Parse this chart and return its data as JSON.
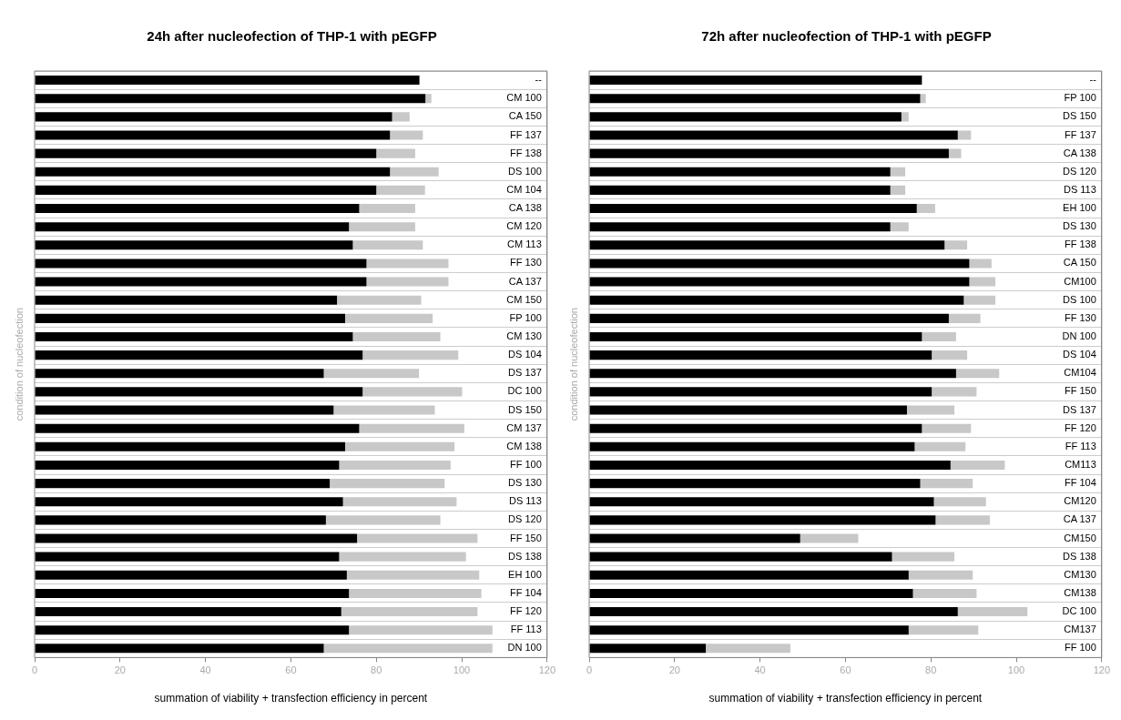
{
  "chart_data": [
    {
      "type": "bar",
      "orientation": "horizontal",
      "stacked": true,
      "title": "24h after nucleofection of THP-1 with pEGFP",
      "xlabel": "summation of viability + transfection efficiency in percent",
      "ylabel": "condition of nucleofection",
      "xlim": [
        0,
        120
      ],
      "xticks": [
        0,
        20,
        40,
        60,
        80,
        100,
        120
      ],
      "grid": "y",
      "categories": [
        "--",
        "CM 100",
        "CA 150",
        "FF 137",
        "FF 138",
        "DS 100",
        "CM 104",
        "CA 138",
        "CM 120",
        "CM 113",
        "FF 130",
        "CA 137",
        "CM 150",
        "FP 100",
        "CM 130",
        "DS 104",
        "DS 137",
        "DC 100",
        "DS 150",
        "CM 137",
        "CM 138",
        "FF 100",
        "DS 130",
        "DS 113",
        "DS 120",
        "FF 150",
        "DS 138",
        "EH 100",
        "FF 104",
        "FF 120",
        "FF 113",
        "DN 100"
      ],
      "series": [
        {
          "color": "#000000",
          "values": [
            90.1,
            91.5,
            83.7,
            83.2,
            80,
            83.2,
            80,
            76,
            73.6,
            74.5,
            77.7,
            77.7,
            70.8,
            72.7,
            74.5,
            76.8,
            67.7,
            76.8,
            70,
            76,
            72.7,
            71.3,
            69.1,
            72.2,
            68.2,
            75.5,
            71.3,
            73.1,
            73.6,
            71.8,
            73.6,
            67.7
          ]
        },
        {
          "color": "#c8c8c8",
          "values": [
            0,
            1.4,
            4.1,
            7.7,
            9.1,
            11.4,
            11.4,
            13.1,
            15.5,
            16.4,
            19.2,
            19.2,
            19.7,
            20.5,
            20.5,
            22.4,
            22.3,
            23.3,
            23.7,
            24.6,
            25.6,
            26.1,
            26.9,
            26.6,
            26.8,
            28.2,
            29.7,
            31,
            31,
            31.9,
            33.6,
            39.5
          ]
        }
      ]
    },
    {
      "type": "bar",
      "orientation": "horizontal",
      "stacked": true,
      "title": "72h after nucleofection of THP-1 with pEGFP",
      "xlabel": "summation of viability + transfection efficiency in percent",
      "ylabel": "condition of nucleofection",
      "xlim": [
        0,
        120
      ],
      "xticks": [
        0,
        20,
        40,
        60,
        80,
        100,
        120
      ],
      "grid": "y",
      "categories": [
        "--",
        "FP 100",
        "DS 150",
        "FF 137",
        "CA 138",
        "DS 120",
        "DS 113",
        "EH 100",
        "DS 130",
        "FF 138",
        "CA 150",
        "CM100",
        "DS 100",
        "FF 130",
        "DN 100",
        "DS 104",
        "CM104",
        "FF 150",
        "DS 137",
        "FF 120",
        "FF 113",
        "CM113",
        "FF 104",
        "CM120",
        "CA 137",
        "CM150",
        "DS 138",
        "CM130",
        "CM138",
        "DC 100",
        "CM137",
        "FF 100"
      ],
      "series": [
        {
          "color": "#000000",
          "values": [
            77.9,
            77.5,
            73.1,
            86.3,
            84.2,
            70.5,
            70.5,
            76.7,
            70.5,
            83.2,
            89,
            89,
            87.7,
            84.2,
            77.9,
            80.2,
            85.9,
            80.2,
            74.4,
            77.9,
            76.2,
            84.6,
            77.5,
            80.7,
            81.1,
            49.4,
            70.9,
            74.8,
            75.8,
            86.3,
            74.8,
            27.3
          ]
        },
        {
          "color": "#c8c8c8",
          "values": [
            0,
            1.3,
            1.7,
            3.1,
            2.9,
            3.5,
            3.5,
            4.3,
            4.3,
            5.3,
            5.2,
            6.1,
            7.4,
            7.4,
            8,
            8.3,
            10.1,
            10.5,
            11.1,
            11.5,
            11.9,
            12.7,
            12.3,
            12.2,
            12.7,
            13.6,
            14.6,
            15,
            14.9,
            16.3,
            16.3,
            19.8
          ]
        }
      ]
    }
  ]
}
